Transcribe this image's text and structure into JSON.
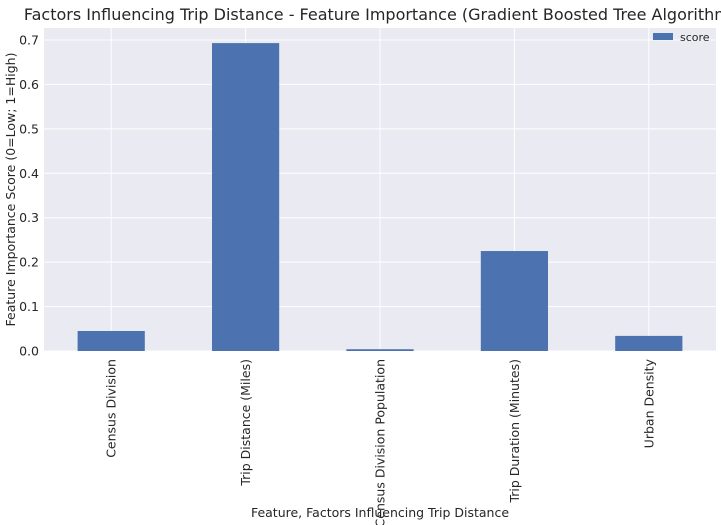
{
  "chart_data": {
    "type": "bar",
    "title": "Factors Influencing Trip Distance - Feature Importance (Gradient Boosted Tree Algorithm)",
    "xlabel": "Feature, Factors Influencing Trip Distance",
    "ylabel": "Feature Importance Score (0=Low; 1=High)",
    "categories": [
      "Census Division",
      "Trip Distance (Miles)",
      "Census Division Population",
      "Trip Duration (Minutes)",
      "Urban Density"
    ],
    "series": [
      {
        "name": "score",
        "values": [
          0.045,
          0.693,
          0.004,
          0.225,
          0.034
        ]
      }
    ],
    "ylim": [
      0,
      0.727
    ],
    "yticks": [
      "0.0",
      "0.1",
      "0.2",
      "0.3",
      "0.4",
      "0.5",
      "0.6",
      "0.7"
    ],
    "grid": true,
    "legend_position": "top-right",
    "colors": {
      "bar": "#4c72b0",
      "plot_background": "#eaeaf2",
      "grid": "#ffffff"
    }
  }
}
